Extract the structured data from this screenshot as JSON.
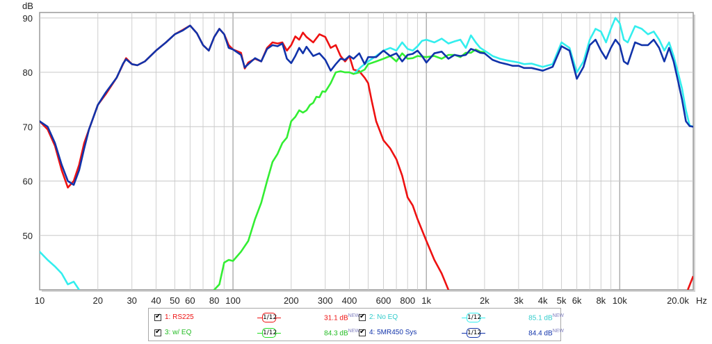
{
  "chart_data": {
    "type": "line",
    "xscale": "log",
    "xlim": [
      10,
      24000
    ],
    "ylim": [
      40,
      91
    ],
    "ylabel": "dB",
    "xlabel": "Hz",
    "grid": true,
    "yticks": [
      50,
      60,
      70,
      80,
      90
    ],
    "xtick_labels": [
      {
        "v": 10,
        "t": "10"
      },
      {
        "v": 20,
        "t": "20"
      },
      {
        "v": 30,
        "t": "30"
      },
      {
        "v": 40,
        "t": "40"
      },
      {
        "v": 50,
        "t": "50"
      },
      {
        "v": 60,
        "t": "60"
      },
      {
        "v": 80,
        "t": "80"
      },
      {
        "v": 100,
        "t": "100"
      },
      {
        "v": 200,
        "t": "200"
      },
      {
        "v": 300,
        "t": "300"
      },
      {
        "v": 400,
        "t": "400"
      },
      {
        "v": 600,
        "t": "600"
      },
      {
        "v": 800,
        "t": "800"
      },
      {
        "v": 1000,
        "t": "1k"
      },
      {
        "v": 2000,
        "t": "2k"
      },
      {
        "v": 3000,
        "t": "3k"
      },
      {
        "v": 4000,
        "t": "4k"
      },
      {
        "v": 5000,
        "t": "5k"
      },
      {
        "v": 6000,
        "t": "6k"
      },
      {
        "v": 8000,
        "t": "8k"
      },
      {
        "v": 10000,
        "t": "10k"
      },
      {
        "v": 20000,
        "t": "20.0k"
      }
    ],
    "series": [
      {
        "name": "1: RS225",
        "color": "#ee1111",
        "points": [
          [
            10,
            71
          ],
          [
            11,
            69.5
          ],
          [
            12,
            66.5
          ],
          [
            13,
            62
          ],
          [
            14,
            58.8
          ],
          [
            15,
            60
          ],
          [
            16,
            63
          ],
          [
            17,
            67
          ],
          [
            18,
            69.5
          ],
          [
            20,
            74
          ],
          [
            22,
            76
          ],
          [
            25,
            79
          ],
          [
            27,
            81.5
          ],
          [
            28,
            82.6
          ],
          [
            30,
            81.5
          ],
          [
            32,
            81.3
          ],
          [
            35,
            82
          ],
          [
            40,
            84
          ],
          [
            45,
            85.5
          ],
          [
            50,
            87
          ],
          [
            55,
            87.8
          ],
          [
            60,
            88.6
          ],
          [
            65,
            87.2
          ],
          [
            70,
            85
          ],
          [
            75,
            84
          ],
          [
            80,
            86.5
          ],
          [
            85,
            88
          ],
          [
            90,
            87
          ],
          [
            95,
            85
          ],
          [
            100,
            84.2
          ],
          [
            110,
            83.6
          ],
          [
            115,
            80.7
          ],
          [
            120,
            81.8
          ],
          [
            130,
            82.5
          ],
          [
            140,
            82
          ],
          [
            150,
            84.5
          ],
          [
            160,
            85.5
          ],
          [
            170,
            85.3
          ],
          [
            180,
            85.5
          ],
          [
            190,
            84
          ],
          [
            200,
            85
          ],
          [
            210,
            86.6
          ],
          [
            220,
            86
          ],
          [
            230,
            87.3
          ],
          [
            240,
            86.5
          ],
          [
            260,
            85.5
          ],
          [
            280,
            87
          ],
          [
            300,
            86.5
          ],
          [
            320,
            84.5
          ],
          [
            340,
            85
          ],
          [
            360,
            83
          ],
          [
            380,
            82
          ],
          [
            400,
            83
          ],
          [
            420,
            80.5
          ],
          [
            450,
            80.2
          ],
          [
            480,
            79
          ],
          [
            500,
            78
          ],
          [
            520,
            75
          ],
          [
            550,
            71
          ],
          [
            600,
            67.5
          ],
          [
            650,
            66
          ],
          [
            700,
            64
          ],
          [
            750,
            61
          ],
          [
            800,
            57
          ],
          [
            850,
            55.5
          ],
          [
            900,
            53
          ],
          [
            1000,
            49
          ],
          [
            1100,
            45.5
          ],
          [
            1200,
            43
          ],
          [
            1300,
            40
          ]
        ]
      },
      {
        "name": "3: w/ EQ",
        "color": "#33ee33",
        "points": [
          [
            80,
            40
          ],
          [
            85,
            41
          ],
          [
            90,
            45
          ],
          [
            95,
            45.5
          ],
          [
            100,
            45.3
          ],
          [
            110,
            47
          ],
          [
            120,
            49
          ],
          [
            130,
            53
          ],
          [
            140,
            56
          ],
          [
            150,
            60
          ],
          [
            160,
            63.5
          ],
          [
            170,
            65
          ],
          [
            180,
            67
          ],
          [
            190,
            68
          ],
          [
            200,
            71
          ],
          [
            210,
            71.8
          ],
          [
            220,
            73
          ],
          [
            230,
            72.6
          ],
          [
            240,
            73
          ],
          [
            250,
            74
          ],
          [
            260,
            74.4
          ],
          [
            270,
            75.5
          ],
          [
            280,
            75.4
          ],
          [
            290,
            76.5
          ],
          [
            300,
            76.4
          ],
          [
            320,
            78
          ],
          [
            340,
            80
          ],
          [
            360,
            80.2
          ],
          [
            380,
            80
          ],
          [
            400,
            80
          ],
          [
            420,
            79.7
          ],
          [
            450,
            80
          ],
          [
            480,
            80.5
          ],
          [
            500,
            81.5
          ],
          [
            550,
            82
          ],
          [
            600,
            82.5
          ],
          [
            650,
            83
          ],
          [
            700,
            82
          ],
          [
            750,
            83.5
          ],
          [
            800,
            82.5
          ],
          [
            850,
            82.6
          ],
          [
            900,
            83
          ],
          [
            1000,
            82.8
          ],
          [
            1100,
            83
          ],
          [
            1200,
            82.5
          ],
          [
            1300,
            83.2
          ],
          [
            1400,
            83.2
          ],
          [
            1500,
            82.8
          ],
          [
            1600,
            83.6
          ],
          [
            1700,
            83.6
          ],
          [
            1800,
            84.2
          ],
          [
            1900,
            83.8
          ],
          [
            2000,
            83.7
          ]
        ]
      },
      {
        "name": "2: No EQ",
        "color": "#33eeee",
        "points": [
          [
            10,
            47
          ],
          [
            11,
            45.5
          ],
          [
            12,
            44.3
          ],
          [
            13,
            43
          ],
          [
            14,
            41
          ],
          [
            15,
            41.5
          ],
          [
            16,
            40
          ],
          [
            430,
            80
          ],
          [
            460,
            81
          ],
          [
            500,
            82
          ],
          [
            550,
            83
          ],
          [
            600,
            84
          ],
          [
            650,
            84.5
          ],
          [
            700,
            84
          ],
          [
            750,
            85.5
          ],
          [
            800,
            84.3
          ],
          [
            850,
            84
          ],
          [
            900,
            84.8
          ],
          [
            950,
            85.8
          ],
          [
            1000,
            86
          ],
          [
            1100,
            85.5
          ],
          [
            1200,
            86.2
          ],
          [
            1300,
            85.3
          ],
          [
            1400,
            85.7
          ],
          [
            1500,
            86
          ],
          [
            1600,
            84.5
          ],
          [
            1700,
            86.8
          ],
          [
            1800,
            85.5
          ],
          [
            1900,
            84.5
          ],
          [
            2000,
            84
          ],
          [
            2200,
            83
          ],
          [
            2400,
            82.5
          ],
          [
            2600,
            82.2
          ],
          [
            2800,
            82
          ],
          [
            3000,
            81.8
          ],
          [
            3200,
            81.5
          ],
          [
            3500,
            81.6
          ],
          [
            4000,
            81
          ],
          [
            4500,
            81.5
          ],
          [
            5000,
            85.5
          ],
          [
            5500,
            84.5
          ],
          [
            6000,
            80
          ],
          [
            6500,
            82
          ],
          [
            7000,
            86
          ],
          [
            7500,
            88
          ],
          [
            8000,
            87.5
          ],
          [
            8500,
            85.5
          ],
          [
            9000,
            88
          ],
          [
            9500,
            90
          ],
          [
            10000,
            89
          ],
          [
            10500,
            86
          ],
          [
            11000,
            85.5
          ],
          [
            12000,
            88.5
          ],
          [
            13000,
            88
          ],
          [
            14000,
            87
          ],
          [
            15000,
            87.5
          ],
          [
            16000,
            86
          ],
          [
            17000,
            84
          ],
          [
            18000,
            85.5
          ],
          [
            19000,
            83
          ],
          [
            20000,
            80
          ],
          [
            21000,
            77
          ],
          [
            22000,
            73
          ],
          [
            23000,
            70.2
          ],
          [
            24000,
            70
          ]
        ]
      },
      {
        "name": "4: 5MR450 Sys",
        "color": "#1133aa",
        "points": [
          [
            10,
            71
          ],
          [
            11,
            70
          ],
          [
            12,
            67
          ],
          [
            13,
            63
          ],
          [
            14,
            60
          ],
          [
            15,
            59.3
          ],
          [
            16,
            62
          ],
          [
            17,
            66
          ],
          [
            18,
            69.5
          ],
          [
            20,
            74
          ],
          [
            22,
            76.3
          ],
          [
            25,
            79
          ],
          [
            27,
            81.6
          ],
          [
            28,
            82.4
          ],
          [
            30,
            81.5
          ],
          [
            32,
            81.3
          ],
          [
            35,
            82
          ],
          [
            40,
            84
          ],
          [
            45,
            85.5
          ],
          [
            50,
            87
          ],
          [
            55,
            87.7
          ],
          [
            60,
            88.6
          ],
          [
            65,
            87.2
          ],
          [
            70,
            85
          ],
          [
            75,
            84
          ],
          [
            80,
            86.5
          ],
          [
            85,
            88
          ],
          [
            90,
            87
          ],
          [
            95,
            84.5
          ],
          [
            100,
            84.2
          ],
          [
            110,
            83.2
          ],
          [
            115,
            80.9
          ],
          [
            120,
            81.5
          ],
          [
            130,
            82.6
          ],
          [
            140,
            82
          ],
          [
            150,
            84.3
          ],
          [
            160,
            85
          ],
          [
            170,
            84.8
          ],
          [
            180,
            85.3
          ],
          [
            190,
            82.5
          ],
          [
            200,
            81.7
          ],
          [
            210,
            83
          ],
          [
            220,
            84.5
          ],
          [
            230,
            83.5
          ],
          [
            240,
            84.7
          ],
          [
            260,
            83
          ],
          [
            280,
            83.5
          ],
          [
            300,
            82.3
          ],
          [
            320,
            80.3
          ],
          [
            340,
            81.5
          ],
          [
            360,
            82.5
          ],
          [
            380,
            82.3
          ],
          [
            400,
            83
          ],
          [
            420,
            82.5
          ],
          [
            450,
            83.5
          ],
          [
            480,
            81.5
          ],
          [
            500,
            82.8
          ],
          [
            550,
            82.8
          ],
          [
            600,
            84
          ],
          [
            650,
            83
          ],
          [
            700,
            83.5
          ],
          [
            750,
            82
          ],
          [
            800,
            83.2
          ],
          [
            850,
            83.4
          ],
          [
            900,
            84
          ],
          [
            950,
            83
          ],
          [
            1000,
            81.8
          ],
          [
            1100,
            83.5
          ],
          [
            1200,
            83.8
          ],
          [
            1300,
            82.5
          ],
          [
            1400,
            83.2
          ],
          [
            1500,
            83
          ],
          [
            1600,
            83.2
          ],
          [
            1700,
            84.3
          ],
          [
            1800,
            84
          ],
          [
            1900,
            83.6
          ],
          [
            2000,
            83.5
          ],
          [
            2200,
            82.3
          ],
          [
            2400,
            81.8
          ],
          [
            2600,
            81.5
          ],
          [
            2800,
            81.2
          ],
          [
            3000,
            81.2
          ],
          [
            3200,
            80.8
          ],
          [
            3500,
            80.8
          ],
          [
            4000,
            80.3
          ],
          [
            4500,
            81
          ],
          [
            5000,
            84.8
          ],
          [
            5500,
            84
          ],
          [
            6000,
            78.8
          ],
          [
            6500,
            81
          ],
          [
            7000,
            85
          ],
          [
            7500,
            86
          ],
          [
            8000,
            84
          ],
          [
            8500,
            82.5
          ],
          [
            9000,
            84.5
          ],
          [
            9500,
            86
          ],
          [
            10000,
            85
          ],
          [
            10500,
            82
          ],
          [
            11000,
            81.5
          ],
          [
            12000,
            85.5
          ],
          [
            13000,
            85
          ],
          [
            14000,
            85
          ],
          [
            15000,
            86
          ],
          [
            16000,
            84.5
          ],
          [
            17000,
            82
          ],
          [
            18000,
            84.5
          ],
          [
            19000,
            82
          ],
          [
            20000,
            78.5
          ],
          [
            21000,
            75
          ],
          [
            22000,
            71
          ],
          [
            23000,
            70.1
          ],
          [
            24000,
            70
          ]
        ]
      }
    ]
  },
  "legend": [
    {
      "name": "1: RS225",
      "smoothing": "1/12",
      "level": "31.1 dB",
      "tag": "NEW",
      "color": "#ee1111"
    },
    {
      "name": "2: No EQ",
      "smoothing": "1/12",
      "level": "85.1 dB",
      "tag": "NEW",
      "color": "#33eeee"
    },
    {
      "name": "3: w/ EQ",
      "smoothing": "1/12",
      "level": "84.3 dB",
      "tag": "NEW",
      "color": "#22dd22"
    },
    {
      "name": "4: 5MR450 Sys",
      "smoothing": "1/12",
      "level": "84.4 dB",
      "tag": "NEW",
      "color": "#1133aa"
    }
  ]
}
